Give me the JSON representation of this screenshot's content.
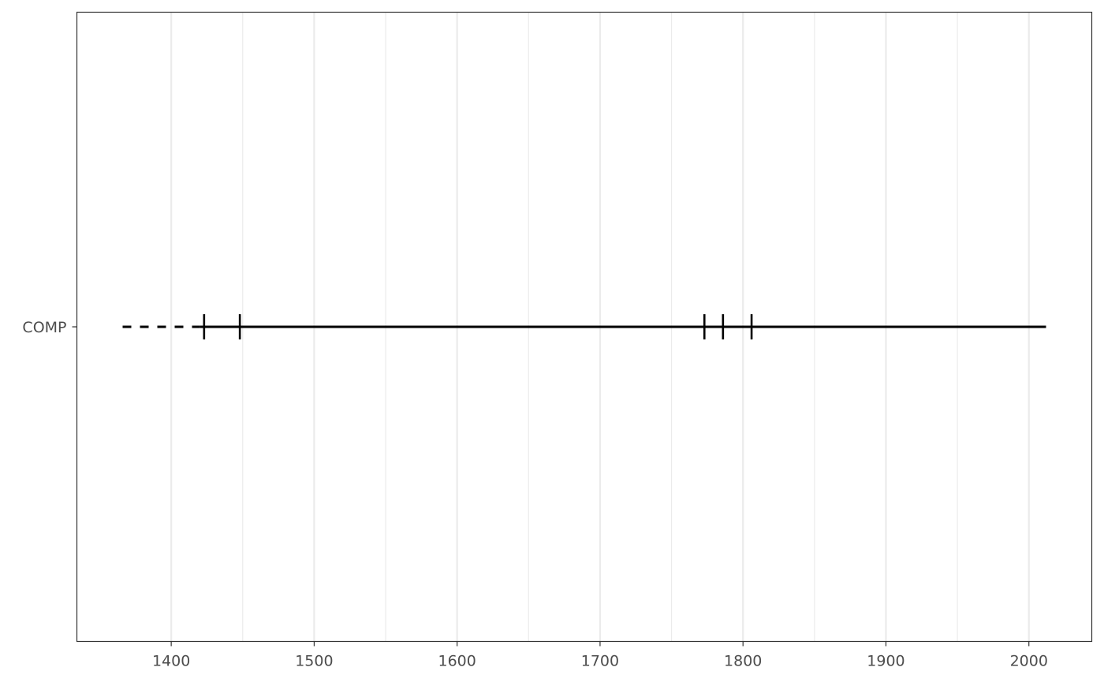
{
  "chart_data": {
    "type": "timeline",
    "title": "",
    "xlabel": "",
    "ylabel": "",
    "xlim": [
      1334,
      2044
    ],
    "x_ticks_major": [
      1400,
      1500,
      1600,
      1700,
      1800,
      1900,
      2000
    ],
    "x_ticks_minor": [
      1450,
      1550,
      1650,
      1750,
      1850,
      1950
    ],
    "grid": true,
    "categories": [
      "COMP"
    ],
    "series": [
      {
        "category": "COMP",
        "dashed_range": [
          1366,
          1420
        ],
        "solid_range": [
          1420,
          2012
        ],
        "event_ticks": [
          1423,
          1448,
          1773,
          1786,
          1806
        ]
      }
    ],
    "colors": {
      "panel_border": "#333333",
      "grid": "#ebebeb",
      "line": "#000000",
      "axis_text": "#4d4d4d"
    }
  }
}
